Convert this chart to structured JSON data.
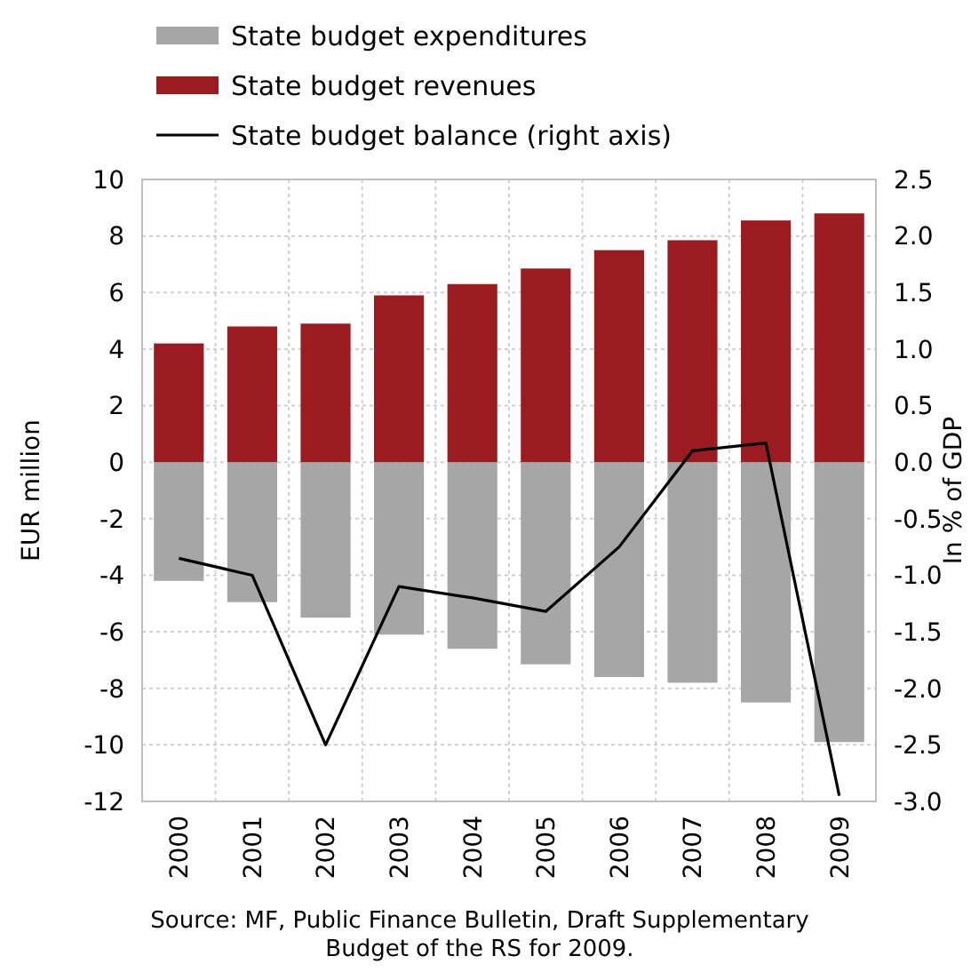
{
  "chart_data": {
    "type": "bar",
    "stacked": true,
    "categories": [
      "2000",
      "2001",
      "2002",
      "2003",
      "2004",
      "2005",
      "2006",
      "2007",
      "2008",
      "2009"
    ],
    "series": [
      {
        "name": "State budget expenditures",
        "color": "#a6a6a6",
        "values": [
          -4.2,
          -4.95,
          -5.5,
          -6.1,
          -6.6,
          -7.15,
          -7.6,
          -7.8,
          -8.5,
          -9.9
        ]
      },
      {
        "name": "State budget revenues",
        "color": "#9b1b20",
        "values": [
          4.2,
          4.8,
          4.9,
          5.9,
          6.3,
          6.85,
          7.5,
          7.85,
          8.55,
          8.8
        ]
      },
      {
        "name": "State budget balance (right axis)",
        "type": "line",
        "axis": "y2",
        "color": "#000000",
        "values": [
          -0.85,
          -1.0,
          -2.5,
          -1.1,
          -1.2,
          -1.32,
          -0.75,
          0.1,
          0.17,
          -2.95
        ]
      }
    ],
    "ylabel": "EUR million",
    "y2label": "In % of GDP",
    "ylim": [
      -12,
      10
    ],
    "yticks": [
      -12,
      -10,
      -8,
      -6,
      -4,
      -2,
      0,
      2,
      4,
      6,
      8,
      10
    ],
    "y2lim": [
      -3,
      2.5
    ],
    "y2ticks": [
      {
        "value": -3,
        "label": "-3.0"
      },
      {
        "value": -2.5,
        "label": "-2.5"
      },
      {
        "value": -2,
        "label": "-2.0"
      },
      {
        "value": -1.5,
        "label": "-1.5"
      },
      {
        "value": -1,
        "label": "-1.0"
      },
      {
        "value": -0.5,
        "label": "-0.5"
      },
      {
        "value": 0,
        "label": "0.0"
      },
      {
        "value": 0.5,
        "label": "0.5"
      },
      {
        "value": 1,
        "label": "1.0"
      },
      {
        "value": 1.5,
        "label": "1.5"
      },
      {
        "value": 2,
        "label": "2.0"
      },
      {
        "value": 2.5,
        "label": "2.5"
      }
    ],
    "grid": true,
    "legend": "top",
    "annotations": [
      "Source: MF, Public Finance Bulletin, Draft Supplementary Budget of the RS for 2009."
    ]
  }
}
